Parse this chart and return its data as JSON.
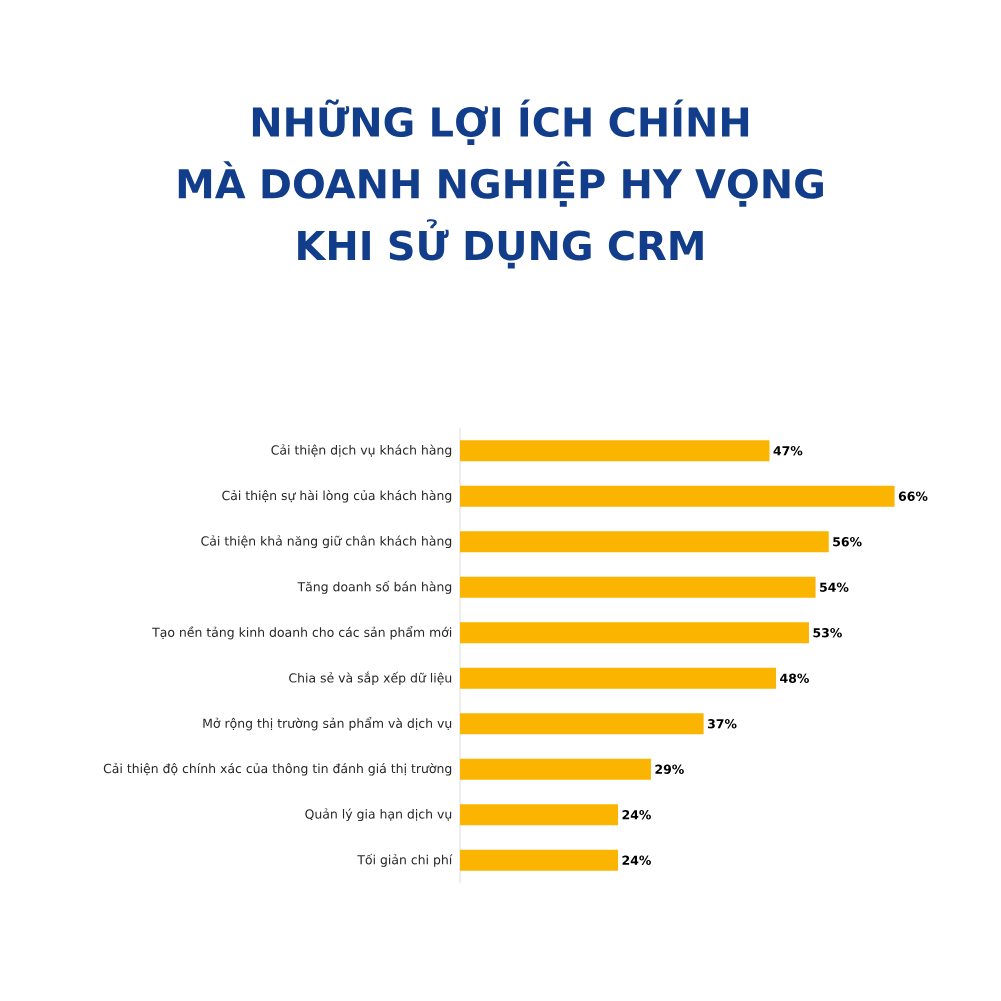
{
  "chart_data": {
    "type": "bar",
    "orientation": "horizontal",
    "title": "NHỮNG LỢI ÍCH CHÍNH\nMÀ DOANH NGHIỆP HY VỌNG\nKHI SỬ DỤNG CRM",
    "categories": [
      "Cải thiện dịch vụ khách hàng",
      "Cải thiện sự hài lòng của khách hàng",
      "Cải thiện khả năng giữ chân khách hàng",
      "Tăng doanh số bán hàng",
      "Tạo nền tảng kinh doanh cho các sản phẩm mới",
      "Chia sẻ và sắp xếp dữ liệu",
      "Mở rộng thị trường sản phẩm và dịch vụ",
      "Cải thiện độ chính xác của thông tin đánh giá thị trường",
      "Quản lý gia hạn dịch vụ",
      "Tối giản chi phí"
    ],
    "values": [
      47,
      66,
      56,
      54,
      53,
      48,
      37,
      29,
      24,
      24
    ],
    "value_labels": [
      "47%",
      "66%",
      "56%",
      "54%",
      "53%",
      "48%",
      "37%",
      "29%",
      "24%",
      "24%"
    ],
    "color": "#fbb400",
    "tick_labels": "y"
  }
}
